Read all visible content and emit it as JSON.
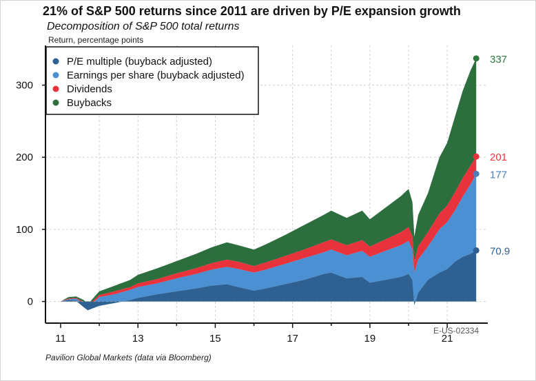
{
  "header": {
    "title": "21% of S&P 500 returns since 2011 are driven by P/E expansion growth",
    "subtitle": "Decomposition of S&P 500 total returns",
    "ylabel": "Return, percentage points"
  },
  "footer": {
    "source": "Pavilion Global Markets (data via Bloomberg)",
    "chart_code": "E-US-02334"
  },
  "chart_data": {
    "type": "area",
    "stacked": true,
    "ylabel": "Return, percentage points",
    "xlim": [
      11,
      21.8
    ],
    "ylim": [
      -30,
      355
    ],
    "yticks": [
      0,
      100,
      200,
      300
    ],
    "xticks": [
      11,
      13,
      15,
      17,
      19,
      21
    ],
    "grid": true,
    "legend_position": "top-left",
    "x": [
      11.0,
      11.2,
      11.4,
      11.6,
      11.7,
      12.0,
      12.4,
      12.8,
      13.0,
      13.5,
      14.0,
      14.5,
      14.9,
      15.3,
      15.6,
      16.0,
      16.3,
      16.8,
      17.3,
      17.8,
      18.0,
      18.4,
      18.8,
      19.0,
      19.4,
      19.8,
      20.0,
      20.1,
      20.15,
      20.25,
      20.5,
      20.8,
      21.0,
      21.2,
      21.4,
      21.6,
      21.75
    ],
    "series": [
      {
        "name": "P/E multiple (buyback adjusted)",
        "color": "#2e6091",
        "values": [
          0,
          2,
          1,
          -8,
          -12,
          -6,
          -2,
          2,
          5,
          10,
          14,
          18,
          22,
          24,
          20,
          15,
          18,
          24,
          30,
          38,
          40,
          32,
          34,
          26,
          30,
          34,
          38,
          30,
          -5,
          12,
          30,
          40,
          45,
          55,
          62,
          66,
          70.9
        ]
      },
      {
        "name": "Earnings per share (buyback adjusted)",
        "color": "#4a90d2",
        "values": [
          0,
          3,
          4,
          -3,
          -8,
          6,
          10,
          16,
          20,
          25,
          32,
          38,
          44,
          48,
          45,
          40,
          44,
          52,
          60,
          68,
          72,
          64,
          70,
          62,
          70,
          78,
          84,
          72,
          40,
          58,
          76,
          100,
          110,
          126,
          145,
          162,
          177
        ]
      },
      {
        "name": "Dividends",
        "color": "#e8323c",
        "values": [
          0,
          4,
          5,
          -1,
          -6,
          9,
          14,
          20,
          25,
          31,
          39,
          46,
          53,
          58,
          55,
          49,
          54,
          63,
          72,
          82,
          86,
          78,
          85,
          76,
          86,
          96,
          103,
          90,
          55,
          76,
          96,
          122,
          133,
          151,
          171,
          188,
          201
        ]
      },
      {
        "name": "Buybacks",
        "color": "#2d6e3e",
        "values": [
          0,
          6,
          7,
          2,
          -4,
          14,
          22,
          30,
          37,
          46,
          56,
          66,
          75,
          82,
          78,
          72,
          79,
          92,
          106,
          120,
          126,
          116,
          126,
          114,
          130,
          146,
          156,
          138,
          90,
          120,
          150,
          200,
          220,
          256,
          292,
          320,
          337
        ]
      }
    ],
    "end_labels": [
      {
        "text": "337",
        "value": 337,
        "color": "#2d7a3c"
      },
      {
        "text": "201",
        "value": 201,
        "color": "#e8323c"
      },
      {
        "text": "177",
        "value": 177,
        "color": "#4a7fb8"
      },
      {
        "text": "70.9",
        "value": 70.9,
        "color": "#2e5f8f"
      }
    ]
  }
}
